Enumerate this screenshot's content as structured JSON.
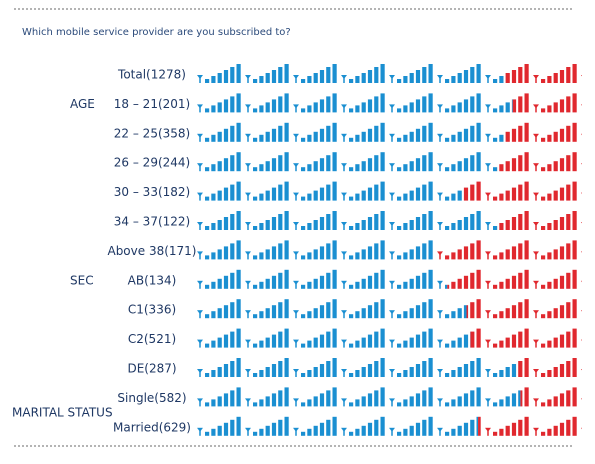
{
  "chart_data": {
    "type": "icon_stacked_bar",
    "title": "Which mobile service provider are you subscribed to?",
    "groups": [
      {
        "categories": [
          "Total(1278)"
        ]
      },
      {
        "label": "AGE",
        "categories": [
          "18 – 21(201)",
          "22 – 25(358)",
          "26 – 29(244)",
          "30 – 33(182)",
          "34 – 37(122)",
          "Above 38(171)"
        ]
      },
      {
        "label": "SEC",
        "categories": [
          "AB(134)",
          "C1(336)",
          "C2(521)",
          "DE(287)"
        ]
      },
      {
        "label": "MARITAL STATUS",
        "categories": [
          "Single(582)",
          "Married(629)"
        ]
      }
    ],
    "series": [
      {
        "color": "#1a8fd1",
        "values": [
          80,
          82,
          80,
          78,
          69,
          78,
          62,
          65,
          70,
          71,
          83,
          84,
          73
        ]
      },
      {
        "color": "#e0282e",
        "values": [
          20,
          18,
          20,
          22,
          31,
          22,
          38,
          35,
          30,
          29,
          17,
          16,
          27
        ]
      }
    ]
  }
}
